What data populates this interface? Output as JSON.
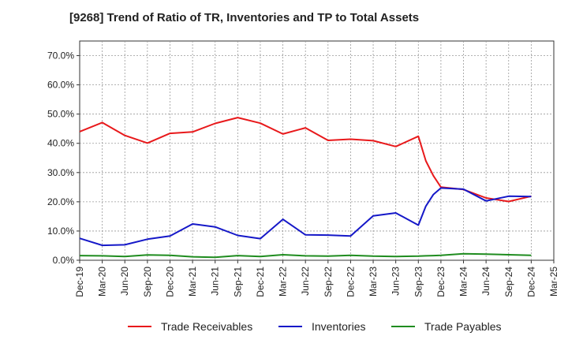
{
  "chart_data": {
    "type": "line",
    "title": "[9268]  Trend of Ratio of TR, Inventories and TP to Total Assets",
    "xlabel": "",
    "ylabel": "",
    "ylim": [
      0,
      0.75
    ],
    "y_ticks": [
      {
        "value": 0.0,
        "label": "0.0%"
      },
      {
        "value": 0.1,
        "label": "10.0%"
      },
      {
        "value": 0.2,
        "label": "20.0%"
      },
      {
        "value": 0.3,
        "label": "30.0%"
      },
      {
        "value": 0.4,
        "label": "40.0%"
      },
      {
        "value": 0.5,
        "label": "50.0%"
      },
      {
        "value": 0.6,
        "label": "60.0%"
      },
      {
        "value": 0.7,
        "label": "70.0%"
      }
    ],
    "x_ticks": [
      "Dec-19",
      "Mar-20",
      "Jun-20",
      "Sep-20",
      "Dec-20",
      "Mar-21",
      "Jun-21",
      "Sep-21",
      "Dec-21",
      "Mar-22",
      "Jun-22",
      "Sep-22",
      "Dec-22",
      "Mar-23",
      "Jun-23",
      "Sep-23",
      "Dec-23",
      "Mar-24",
      "Jun-24",
      "Sep-24",
      "Dec-24",
      "Mar-25"
    ],
    "x": [
      "Dec-19",
      "Mar-20",
      "Jun-20",
      "Sep-20",
      "Dec-20",
      "Mar-21",
      "Jun-21",
      "Sep-21",
      "Dec-21",
      "Mar-22",
      "Jun-22",
      "Sep-22",
      "Dec-22",
      "Mar-23",
      "Jun-23",
      "Sep-23",
      "Oct-23",
      "Nov-23",
      "Dec-23",
      "Mar-24",
      "Jun-24",
      "Sep-24",
      "Dec-24"
    ],
    "grid": true,
    "legend_position": "bottom",
    "series": [
      {
        "name": "Trade Receivables",
        "color": "#e8191b",
        "values": [
          0.44,
          0.471,
          0.427,
          0.401,
          0.434,
          0.439,
          0.468,
          0.488,
          0.469,
          0.432,
          0.453,
          0.41,
          0.414,
          0.409,
          0.389,
          0.424,
          0.34,
          0.289,
          0.25,
          0.242,
          0.213,
          0.201,
          0.219
        ]
      },
      {
        "name": "Inventories",
        "color": "#1518c8",
        "values": [
          0.075,
          0.051,
          0.053,
          0.072,
          0.083,
          0.124,
          0.114,
          0.085,
          0.074,
          0.14,
          0.087,
          0.086,
          0.083,
          0.152,
          0.162,
          0.12,
          0.185,
          0.225,
          0.247,
          0.243,
          0.203,
          0.219,
          0.218
        ]
      },
      {
        "name": "Trade Payables",
        "color": "#1f8c1f",
        "values": [
          0.016,
          0.015,
          0.013,
          0.018,
          0.017,
          0.012,
          0.01,
          0.016,
          0.013,
          0.019,
          0.015,
          0.014,
          0.017,
          0.014,
          0.013,
          0.014,
          0.015,
          0.016,
          0.017,
          0.022,
          0.021,
          0.019,
          0.017
        ]
      }
    ]
  }
}
